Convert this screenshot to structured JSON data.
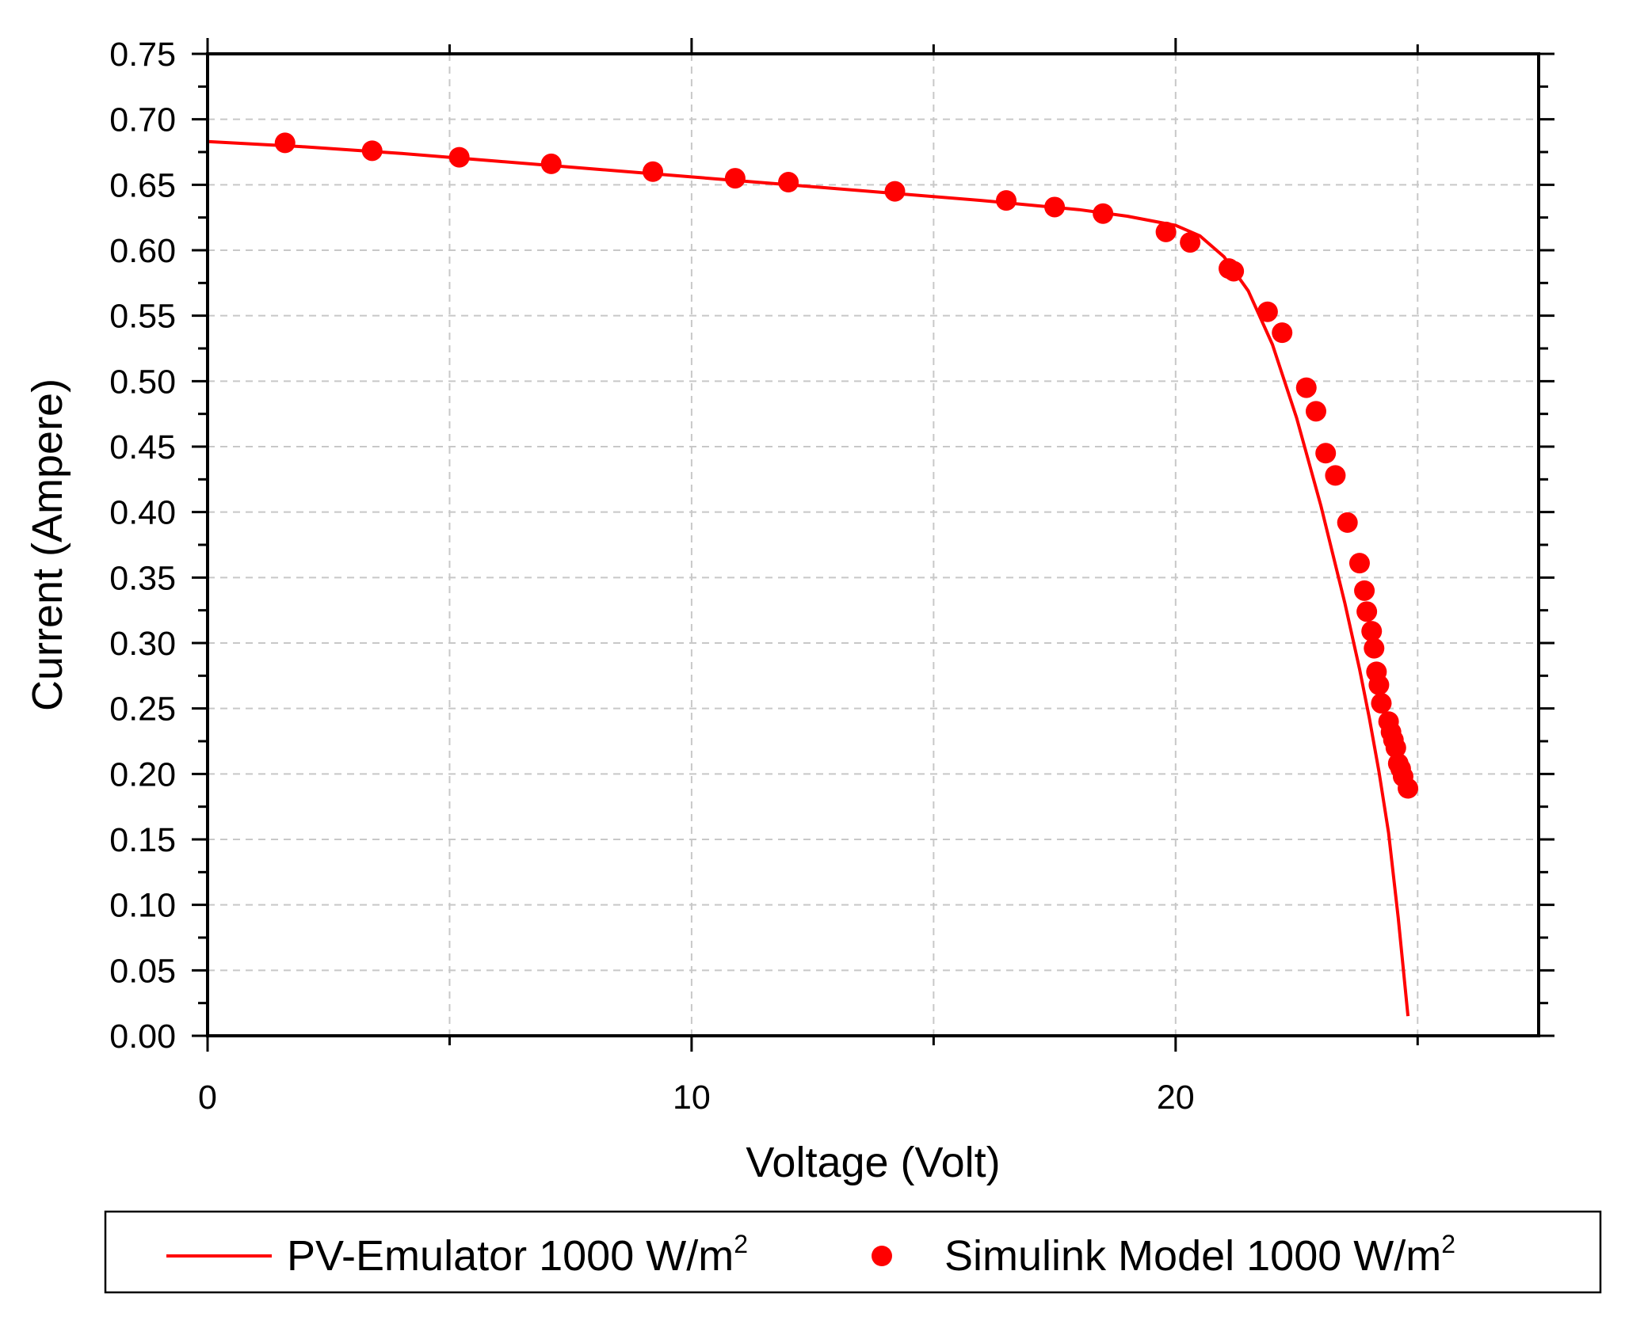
{
  "chart_data": {
    "type": "line",
    "xlabel": "Voltage (Volt)",
    "ylabel": "Current (Ampere)",
    "xlim": [
      0,
      27.5
    ],
    "ylim": [
      0,
      0.75
    ],
    "x_ticks": [
      0,
      10,
      20
    ],
    "x_tick_labels": [
      "0",
      "10",
      "20"
    ],
    "y_ticks": [
      0.0,
      0.05,
      0.1,
      0.15,
      0.2,
      0.25,
      0.3,
      0.35,
      0.4,
      0.45,
      0.5,
      0.55,
      0.6,
      0.65,
      0.7,
      0.75
    ],
    "y_tick_labels": [
      "0.00",
      "0.05",
      "0.10",
      "0.15",
      "0.20",
      "0.25",
      "0.30",
      "0.35",
      "0.40",
      "0.45",
      "0.50",
      "0.55",
      "0.60",
      "0.65",
      "0.70",
      "0.75"
    ],
    "grid": true,
    "color": "#ff0000",
    "series": [
      {
        "name": "PV-Emulator 1000 W/m",
        "name_superscript": "2",
        "kind": "line",
        "x": [
          0,
          2,
          4,
          6,
          8,
          10,
          12,
          14,
          16,
          18,
          19,
          20,
          20.5,
          21,
          21.5,
          22,
          22.5,
          23,
          23.5,
          23.8,
          24.0,
          24.2,
          24.4,
          24.6,
          24.8
        ],
        "y": [
          0.683,
          0.679,
          0.674,
          0.668,
          0.662,
          0.656,
          0.65,
          0.644,
          0.638,
          0.631,
          0.626,
          0.619,
          0.611,
          0.595,
          0.569,
          0.528,
          0.472,
          0.405,
          0.33,
          0.28,
          0.243,
          0.202,
          0.155,
          0.09,
          0.015
        ]
      },
      {
        "name": "Simulink Model 1000 W/m",
        "name_superscript": "2",
        "kind": "scatter",
        "x": [
          1.6,
          3.4,
          5.2,
          7.1,
          9.2,
          10.9,
          12.0,
          14.2,
          16.5,
          17.5,
          18.5,
          19.8,
          20.3,
          21.1,
          21.2,
          21.9,
          22.2,
          22.7,
          22.9,
          23.1,
          23.3,
          23.55,
          23.8,
          23.9,
          23.95,
          24.05,
          24.1,
          24.15,
          24.2,
          24.25,
          24.4,
          24.45,
          24.5,
          24.55,
          24.6,
          24.65,
          24.7,
          24.8
        ],
        "y": [
          0.682,
          0.676,
          0.671,
          0.666,
          0.66,
          0.655,
          0.652,
          0.645,
          0.638,
          0.633,
          0.628,
          0.614,
          0.606,
          0.586,
          0.584,
          0.553,
          0.537,
          0.495,
          0.477,
          0.445,
          0.428,
          0.392,
          0.361,
          0.34,
          0.324,
          0.309,
          0.296,
          0.278,
          0.268,
          0.254,
          0.24,
          0.232,
          0.226,
          0.22,
          0.208,
          0.204,
          0.198,
          0.189
        ]
      }
    ],
    "legend_position": "bottom"
  }
}
